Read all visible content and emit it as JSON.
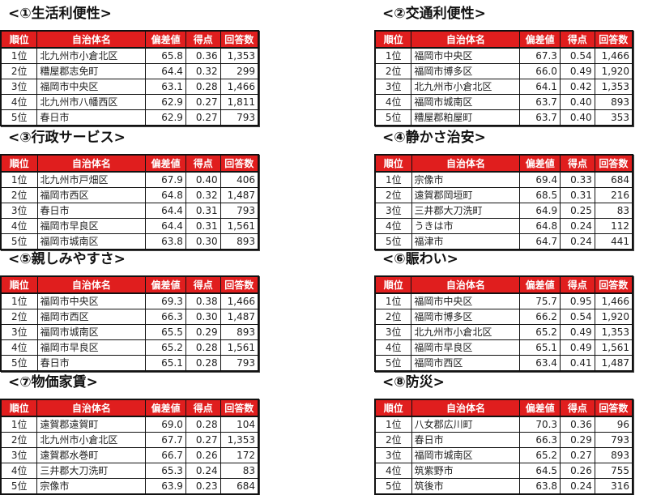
{
  "headers": [
    "順位",
    "自治体名",
    "偏差値",
    "得点",
    "回答数"
  ],
  "colors": {
    "header_bg": "#e01e1e",
    "header_text": "#ffffff"
  },
  "sections": [
    {
      "title": "<①生活利便性>",
      "rows": [
        [
          "1位",
          "北九州市小倉北区",
          "65.8",
          "0.36",
          "1,353"
        ],
        [
          "2位",
          "糟屋郡志免町",
          "64.4",
          "0.32",
          "299"
        ],
        [
          "3位",
          "福岡市中央区",
          "63.1",
          "0.28",
          "1,466"
        ],
        [
          "4位",
          "北九州市八幡西区",
          "62.9",
          "0.27",
          "1,811"
        ],
        [
          "5位",
          "春日市",
          "62.9",
          "0.27",
          "793"
        ]
      ]
    },
    {
      "title": "<②交通利便性>",
      "rows": [
        [
          "1位",
          "福岡市中央区",
          "67.3",
          "0.54",
          "1,466"
        ],
        [
          "2位",
          "福岡市博多区",
          "66.0",
          "0.49",
          "1,920"
        ],
        [
          "3位",
          "北九州市小倉北区",
          "64.1",
          "0.42",
          "1,353"
        ],
        [
          "4位",
          "福岡市城南区",
          "63.7",
          "0.40",
          "893"
        ],
        [
          "5位",
          "糟屋郡粕屋町",
          "63.7",
          "0.40",
          "353"
        ]
      ]
    },
    {
      "title": "<③行政サービス>",
      "rows": [
        [
          "1位",
          "北九州市戸畑区",
          "67.9",
          "0.40",
          "406"
        ],
        [
          "2位",
          "福岡市西区",
          "64.8",
          "0.32",
          "1,487"
        ],
        [
          "3位",
          "春日市",
          "64.4",
          "0.31",
          "793"
        ],
        [
          "4位",
          "福岡市早良区",
          "64.4",
          "0.31",
          "1,561"
        ],
        [
          "5位",
          "福岡市城南区",
          "63.8",
          "0.30",
          "893"
        ]
      ]
    },
    {
      "title": "<④静かさ治安>",
      "rows": [
        [
          "1位",
          "宗像市",
          "69.4",
          "0.33",
          "684"
        ],
        [
          "2位",
          "遠賀郡岡垣町",
          "68.5",
          "0.31",
          "216"
        ],
        [
          "3位",
          "三井郡大刀洗町",
          "64.9",
          "0.25",
          "83"
        ],
        [
          "4位",
          "うきは市",
          "64.8",
          "0.24",
          "112"
        ],
        [
          "5位",
          "福津市",
          "64.7",
          "0.24",
          "441"
        ]
      ]
    },
    {
      "title": "<⑤親しみやすさ>",
      "rows": [
        [
          "1位",
          "福岡市中央区",
          "69.3",
          "0.38",
          "1,466"
        ],
        [
          "2位",
          "福岡市西区",
          "66.3",
          "0.30",
          "1,487"
        ],
        [
          "3位",
          "福岡市城南区",
          "65.5",
          "0.29",
          "893"
        ],
        [
          "4位",
          "福岡市早良区",
          "65.2",
          "0.28",
          "1,561"
        ],
        [
          "5位",
          "春日市",
          "65.1",
          "0.28",
          "793"
        ]
      ]
    },
    {
      "title": "<⑥賑わい>",
      "rows": [
        [
          "1位",
          "福岡市中央区",
          "75.7",
          "0.95",
          "1,466"
        ],
        [
          "2位",
          "福岡市博多区",
          "66.2",
          "0.54",
          "1,920"
        ],
        [
          "3位",
          "北九州市小倉北区",
          "65.2",
          "0.49",
          "1,353"
        ],
        [
          "4位",
          "福岡市早良区",
          "65.1",
          "0.49",
          "1,561"
        ],
        [
          "5位",
          "福岡市西区",
          "63.4",
          "0.41",
          "1,487"
        ]
      ]
    },
    {
      "title": "<⑦物価家賃>",
      "rows": [
        [
          "1位",
          "遠賀郡遠賀町",
          "69.0",
          "0.28",
          "104"
        ],
        [
          "2位",
          "北九州市小倉北区",
          "67.7",
          "0.27",
          "1,353"
        ],
        [
          "3位",
          "遠賀郡水巻町",
          "66.7",
          "0.26",
          "172"
        ],
        [
          "4位",
          "三井郡大刀洗町",
          "65.3",
          "0.24",
          "83"
        ],
        [
          "5位",
          "宗像市",
          "63.9",
          "0.23",
          "684"
        ]
      ]
    },
    {
      "title": "<⑧防災>",
      "rows": [
        [
          "1位",
          "八女郡広川町",
          "70.3",
          "0.36",
          "96"
        ],
        [
          "2位",
          "春日市",
          "66.3",
          "0.29",
          "793"
        ],
        [
          "3位",
          "福岡市城南区",
          "65.2",
          "0.27",
          "893"
        ],
        [
          "4位",
          "筑紫野市",
          "64.5",
          "0.26",
          "755"
        ],
        [
          "5位",
          "筑後市",
          "63.8",
          "0.24",
          "316"
        ]
      ]
    }
  ]
}
